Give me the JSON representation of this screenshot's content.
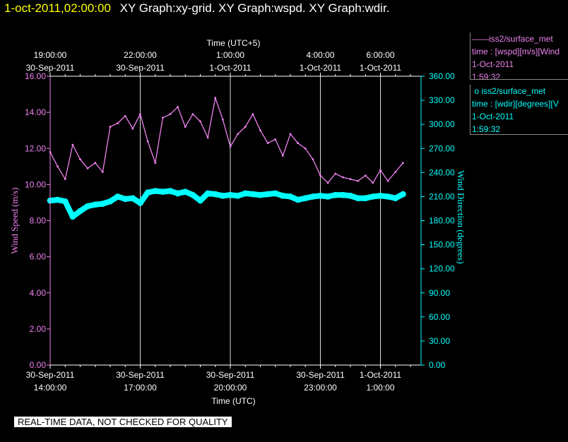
{
  "header": {
    "timestamp": "1-oct-2011,02:00:00",
    "description": "XY Graph:xy-grid.  XY Graph:wspd.  XY Graph:wdir."
  },
  "legend": [
    {
      "marker": "——",
      "name": "iss2/surface_met",
      "field": "time : [wspd][m/s][Wind",
      "date": "1-Oct-2011",
      "time": "1:59:32",
      "color": "#ee82ee"
    },
    {
      "marker": "o",
      "name": "iss2/surface_met",
      "field": "time : [wdir][degrees][V",
      "date": "1-Oct-2011",
      "time": "1:59:32",
      "color": "#00ffff"
    }
  ],
  "disclaimer": "REAL-TIME DATA, NOT CHECKED FOR QUALITY",
  "chart_data": {
    "type": "line",
    "title": "",
    "x_axis_bottom": {
      "label": "Time (UTC)",
      "ticks": [
        {
          "line1": "30-Sep-2011",
          "line2": "14:00:00",
          "hour": 0
        },
        {
          "line1": "30-Sep-2011",
          "line2": "17:00:00",
          "hour": 3
        },
        {
          "line1": "30-Sep-2011",
          "line2": "20:00:00",
          "hour": 6
        },
        {
          "line1": "30-Sep-2011",
          "line2": "23:00:00",
          "hour": 9
        },
        {
          "line1": "1-Oct-2011",
          "line2": "1:00:00",
          "hour": 11
        }
      ]
    },
    "x_axis_top": {
      "label": "Time (UTC+5)",
      "ticks": [
        {
          "line1": "19:00:00",
          "line2": "30-Sep-2011",
          "hour": 0
        },
        {
          "line1": "22:00:00",
          "line2": "30-Sep-2011",
          "hour": 3
        },
        {
          "line1": "1:00:00",
          "line2": "1-Oct-2011",
          "hour": 6
        },
        {
          "line1": "4:00:00",
          "line2": "1-Oct-2011",
          "hour": 9
        },
        {
          "line1": "6:00:00",
          "line2": "1-Oct-2011",
          "hour": 11
        }
      ]
    },
    "xlim_hours": [
      0,
      12.0
    ],
    "y_left": {
      "label": "Wind Speed (m/s)",
      "range": [
        0,
        16
      ],
      "ticks": [
        "0.00",
        "2.00",
        "4.00",
        "6.00",
        "8.00",
        "10.00",
        "12.00",
        "14.00",
        "16.00"
      ],
      "color": "#ee82ee"
    },
    "y_right": {
      "label": "Wind Direction (degrees)",
      "range": [
        0,
        360
      ],
      "ticks": [
        "0.00",
        "30.00",
        "60.00",
        "90.00",
        "120.00",
        "150.00",
        "180.00",
        "210.00",
        "240.00",
        "270.00",
        "300.00",
        "330.00",
        "360.00"
      ],
      "color": "#00ffff"
    },
    "grid": "vertical",
    "series": [
      {
        "name": "wspd",
        "axis": "left",
        "color": "#ee82ee",
        "x_hours": [
          0.0,
          0.25,
          0.5,
          0.75,
          1.0,
          1.25,
          1.5,
          1.75,
          2.0,
          2.25,
          2.5,
          2.75,
          3.0,
          3.25,
          3.5,
          3.75,
          4.0,
          4.25,
          4.5,
          4.75,
          5.0,
          5.25,
          5.5,
          5.75,
          6.0,
          6.25,
          6.5,
          6.75,
          7.0,
          7.25,
          7.5,
          7.75,
          8.0,
          8.25,
          8.5,
          8.75,
          9.0,
          9.25,
          9.5,
          9.75,
          10.0,
          10.25,
          10.5,
          10.75,
          11.0,
          11.25,
          11.5,
          11.75
        ],
        "values": [
          11.8,
          11.0,
          10.3,
          12.2,
          11.4,
          10.9,
          11.2,
          10.7,
          13.2,
          13.4,
          13.8,
          13.1,
          13.9,
          12.4,
          11.2,
          13.7,
          13.9,
          14.3,
          13.2,
          13.9,
          13.5,
          12.6,
          14.8,
          13.6,
          12.1,
          12.8,
          13.2,
          13.9,
          13.0,
          12.3,
          12.5,
          11.6,
          12.8,
          12.3,
          12.0,
          11.4,
          10.5,
          10.1,
          10.6,
          10.4,
          10.3,
          10.2,
          10.5,
          10.1,
          10.8,
          10.2,
          10.7,
          11.2
        ]
      },
      {
        "name": "wdir",
        "axis": "right",
        "color": "#00ffff",
        "x_hours": [
          0.0,
          0.25,
          0.5,
          0.75,
          1.0,
          1.25,
          1.5,
          1.75,
          2.0,
          2.25,
          2.5,
          2.75,
          3.0,
          3.25,
          3.5,
          3.75,
          4.0,
          4.25,
          4.5,
          4.75,
          5.0,
          5.25,
          5.5,
          5.75,
          6.0,
          6.25,
          6.5,
          6.75,
          7.0,
          7.25,
          7.5,
          7.75,
          8.0,
          8.25,
          8.5,
          8.75,
          9.0,
          9.25,
          9.5,
          9.75,
          10.0,
          10.25,
          10.5,
          10.75,
          11.0,
          11.25,
          11.5,
          11.75
        ],
        "values": [
          205,
          206,
          204,
          185,
          192,
          198,
          200,
          201,
          204,
          210,
          207,
          208,
          202,
          215,
          217,
          216,
          217,
          214,
          216,
          212,
          205,
          214,
          213,
          211,
          212,
          211,
          214,
          213,
          212,
          213,
          214,
          211,
          210,
          206,
          208,
          210,
          211,
          210,
          212,
          212,
          211,
          208,
          208,
          210,
          211,
          210,
          208,
          213
        ]
      }
    ]
  }
}
